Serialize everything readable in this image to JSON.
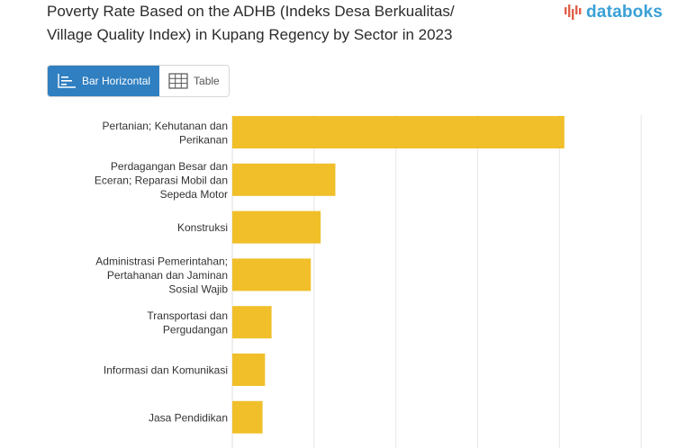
{
  "header": {
    "title_line1": "Poverty Rate Based on the ADHB (Indeks Desa Berkualitas/",
    "title_line2": "Village Quality Index) in Kupang Regency by Sector in 2023",
    "logo_text": "databoks"
  },
  "tabs": [
    {
      "label": "Bar Horizontal",
      "active": true,
      "icon": "bar-chart-icon"
    },
    {
      "label": "Table",
      "active": false,
      "icon": "table-icon"
    }
  ],
  "colors": {
    "bar": "#f0bf2a",
    "active_tab": "#2f7fc1",
    "logo": "#3aa0d6",
    "logo_mark": "#e0614a"
  },
  "chart_data": {
    "type": "bar",
    "orientation": "horizontal",
    "categories": [
      [
        "Pertanian; Kehutanan dan",
        "Perikanan"
      ],
      [
        "Perdagangan Besar dan",
        "Eceran; Reparasi Mobil dan",
        "Sepeda Motor"
      ],
      [
        "Konstruksi"
      ],
      [
        "Administrasi Pemerintahan;",
        "Pertahanan dan Jaminan",
        "Sosial Wajib"
      ],
      [
        "Transportasi dan",
        "Pergudangan"
      ],
      [
        "Informasi dan Komunikasi"
      ],
      [
        "Jasa Pendidikan"
      ]
    ],
    "values": [
      40.6,
      12.6,
      10.8,
      9.6,
      4.8,
      4.0,
      3.7
    ],
    "xlim": [
      0,
      60
    ],
    "grid": true,
    "legend": "none"
  }
}
